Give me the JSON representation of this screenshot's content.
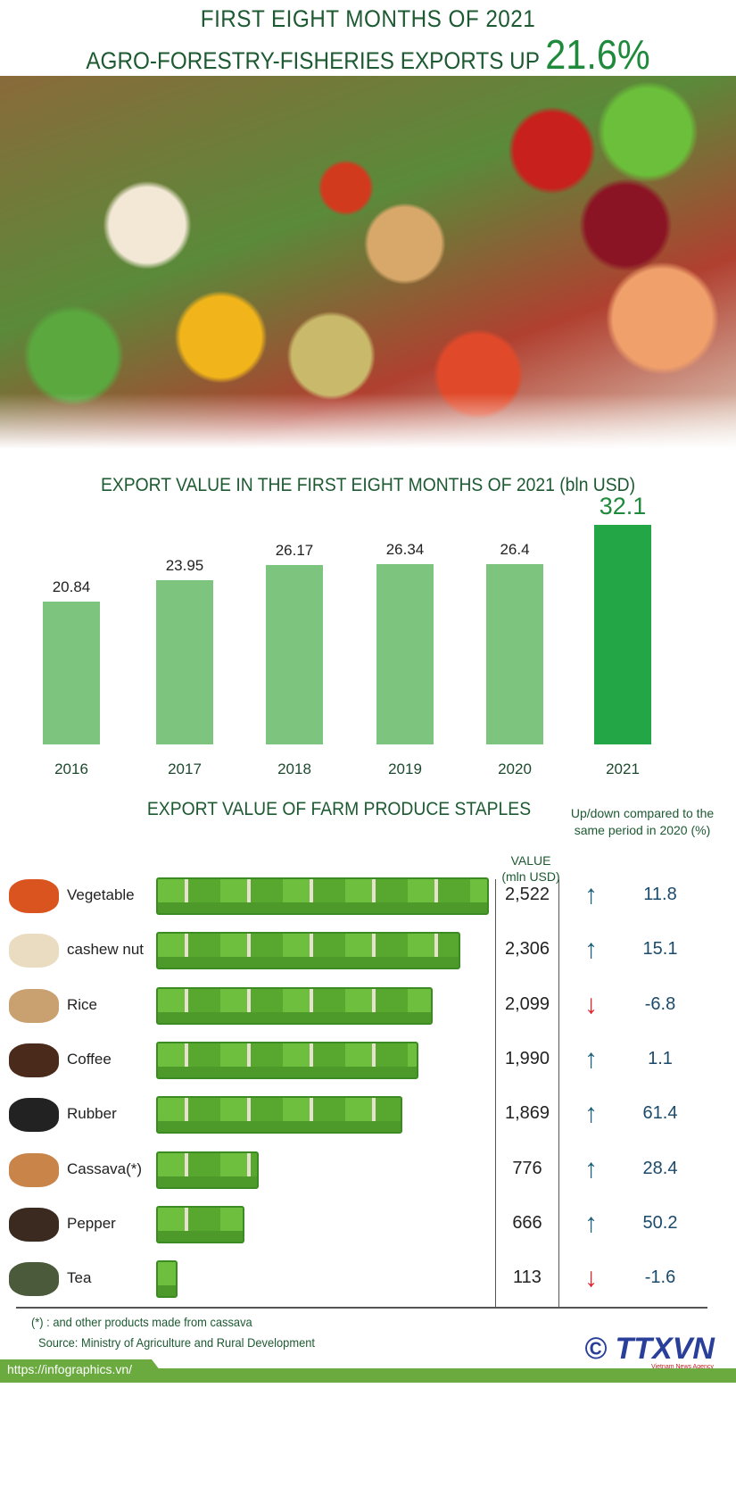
{
  "header": {
    "line1": "FIRST EIGHT MONTHS OF 2021",
    "line2": "AGRO-FORESTRY-FISHERIES EXPORTS UP",
    "highlight": "21.6%"
  },
  "chart_data": {
    "type": "bar",
    "title": "EXPORT VALUE IN THE FIRST EIGHT MONTHS OF 2021 (bln USD)",
    "categories": [
      "2016",
      "2017",
      "2018",
      "2019",
      "2020",
      "2021"
    ],
    "values": [
      20.84,
      23.95,
      26.17,
      26.34,
      26.4,
      32.1
    ],
    "value_labels": [
      "20.84",
      "23.95",
      "26.17",
      "26.34",
      "26.4",
      "32.1"
    ],
    "highlight": "2021",
    "colors": {
      "bar": "#7dc47f",
      "highlight": "#22a646"
    },
    "ylim": [
      0,
      32.1
    ],
    "grid": false
  },
  "staples": {
    "title": "EXPORT VALUE OF FARM PRODUCE STAPLES",
    "value_header": "VALUE (mln USD)",
    "change_header": "Up/down compared to the same period in 2020 (%)",
    "rows": [
      {
        "name": "Vegetable",
        "value": "2,522",
        "change": "11.8",
        "direction": "up"
      },
      {
        "name": "cashew nut",
        "value": "2,306",
        "change": "15.1",
        "direction": "up"
      },
      {
        "name": "Rice",
        "value": "2,099",
        "change": "-6.8",
        "direction": "down"
      },
      {
        "name": "Coffee",
        "value": "1,990",
        "change": "1.1",
        "direction": "up"
      },
      {
        "name": "Rubber",
        "value": "1,869",
        "change": "61.4",
        "direction": "up"
      },
      {
        "name": "Cassava(*)",
        "value": "776",
        "change": "28.4",
        "direction": "up"
      },
      {
        "name": "Pepper",
        "value": "666",
        "change": "50.2",
        "direction": "up"
      },
      {
        "name": "Tea",
        "value": "113",
        "change": "-1.6",
        "direction": "down"
      }
    ],
    "colors": {
      "up": "#1b5f7a",
      "down": "#e0202a"
    }
  },
  "footer": {
    "footnote": "(*) : and other products made from cassava",
    "source": "Source: Ministry of Agriculture and Rural Development",
    "url": "https://infographics.vn/",
    "logo": "© TTXVN",
    "logo_sub": "Vietnam News Agency"
  }
}
